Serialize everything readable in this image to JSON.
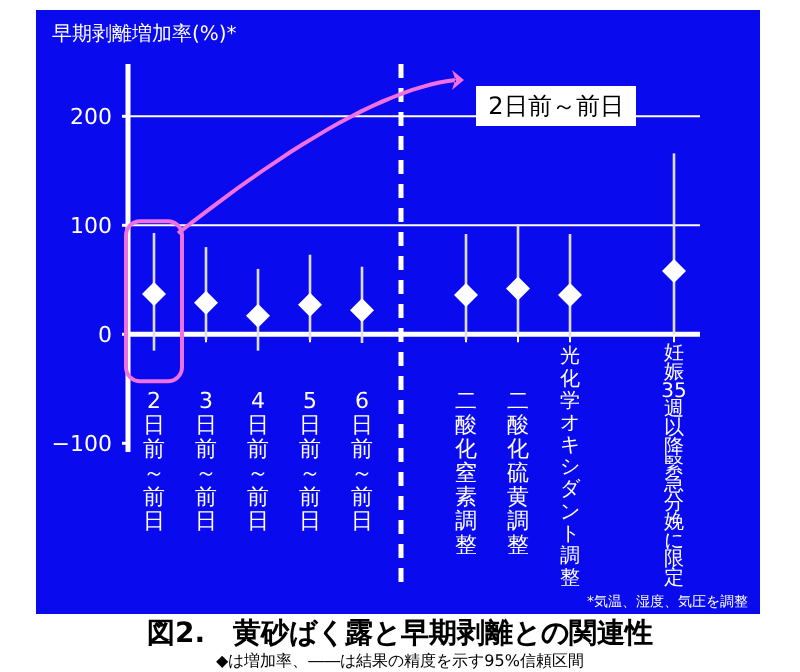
{
  "chart_data": {
    "type": "scatter",
    "title": "図2.　黄砂ばく露と早期剥離との関連性",
    "subtitle": "◆は増加率、――は結果の精度を示す95%信頼区間",
    "ylabel": "早期剥離増加率(%)*",
    "categories": [
      "2日前～前日",
      "3日前～前日",
      "4日前～前日",
      "5日前～前日",
      "6日前～前日",
      null,
      "二酸化窒素調整",
      "二酸化硫黄調整",
      "光化学オキシダント調整",
      null,
      "妊娠35週以降緊急分娩に限定"
    ],
    "series": [
      {
        "color": "#ffffff",
        "values": [
          37,
          29,
          17,
          27,
          22,
          null,
          36,
          42,
          36,
          null,
          58
        ],
        "errors": [
          [
            -15,
            93
          ],
          [
            -5,
            80
          ],
          [
            -15,
            60
          ],
          [
            -5,
            73
          ],
          [
            -8,
            62
          ],
          null,
          [
            -5,
            92
          ],
          [
            0,
            101
          ],
          [
            -3,
            92
          ],
          null,
          [
            0,
            166
          ]
        ]
      }
    ],
    "marker": "diamond",
    "ylim": [
      -108,
      248
    ],
    "yticks": [
      {
        "value": -100,
        "label": "−100"
      },
      0,
      100,
      200
    ],
    "grid": "y",
    "annotations": [
      "2日前～前日",
      "*気温、湿度、気圧を調整"
    ]
  }
}
